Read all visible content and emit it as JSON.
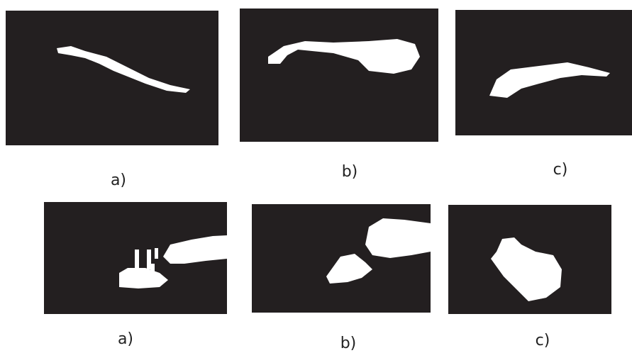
{
  "rows": [
    {
      "panels": [
        {
          "label": "a)"
        },
        {
          "label": "b)"
        },
        {
          "label": "c)"
        }
      ]
    },
    {
      "panels": [
        {
          "label": "a)"
        },
        {
          "label": "b)"
        },
        {
          "label": "c)"
        }
      ]
    }
  ]
}
